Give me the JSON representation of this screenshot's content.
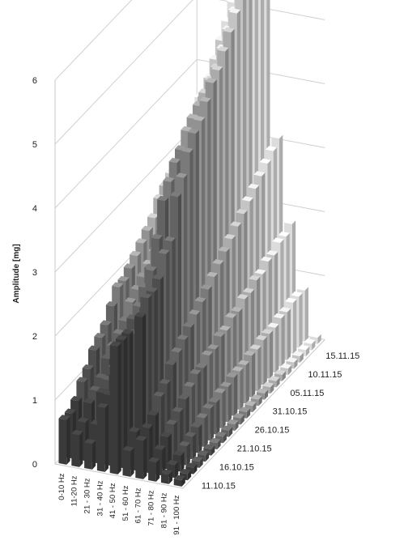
{
  "chart_data": {
    "type": "bar",
    "subtype": "3d-column",
    "ylabel": "Amplitude [mg]",
    "ylim": [
      0,
      6
    ],
    "yticks": [
      0,
      1,
      2,
      3,
      4,
      5,
      6
    ],
    "grid": true,
    "legend": "none",
    "categories": [
      "0-10 Hz",
      "11-20 Hz",
      "21 - 30 Hz",
      "31 - 40 Hz",
      "41 - 50 Hz",
      "51 - 60 Hz",
      "61 - 70 Hz",
      "71 - 80 Hz",
      "81 - 90 Hz",
      "91 - 100 Hz"
    ],
    "series_labels": [
      "11.10.15",
      "16.10.15",
      "21.10.15",
      "26.10.15",
      "31.10.15",
      "05.11.15",
      "10.11.15",
      "15.11.15"
    ],
    "series_colors": [
      "#3a3a3a",
      "#4e4e4e",
      "#636363",
      "#7a7a7a",
      "#929292",
      "#ababab",
      "#c4c4c4",
      "#dcdcdc"
    ],
    "rows_per_series": 3,
    "values": [
      [
        0.7,
        0.7,
        0.8,
        1.0,
        1.1,
        1.3,
        1.4,
        1.5,
        1.7,
        1.9,
        1.9,
        2.0,
        2.1,
        2.2,
        2.3,
        2.4,
        2.6,
        2.7,
        2.8,
        2.9,
        3.0,
        3.2,
        3.3,
        3.5
      ],
      [
        0.5,
        0.6,
        0.8,
        0.9,
        1.0,
        1.2,
        1.3,
        1.4,
        1.5,
        1.7,
        1.8,
        1.9,
        2.0,
        2.1,
        2.2,
        2.3,
        2.4,
        2.5,
        2.6,
        2.8,
        2.9,
        3.0,
        3.1,
        3.3
      ],
      [
        0.4,
        0.6,
        1.0,
        1.1,
        1.2,
        1.3,
        1.3,
        1.4,
        1.4,
        1.5,
        1.5,
        1.6,
        1.6,
        1.7,
        1.8,
        1.9,
        2.0,
        2.1,
        2.2,
        2.3,
        2.4,
        2.5,
        2.6,
        2.7
      ],
      [
        1.0,
        1.1,
        1.3,
        1.5,
        1.7,
        1.9,
        2.0,
        2.2,
        2.4,
        2.6,
        2.8,
        3.0,
        3.2,
        3.4,
        3.6,
        3.8,
        4.0,
        4.2,
        4.4,
        4.6,
        4.8,
        5.0,
        5.2,
        5.4
      ],
      [
        2.0,
        2.0,
        2.0,
        1.9,
        1.9,
        2.1,
        2.6,
        3.0,
        3.5,
        3.7,
        3.9,
        4.0,
        4.2,
        4.3,
        4.4,
        4.5,
        4.6,
        4.7,
        4.9,
        5.1,
        5.3,
        5.5,
        5.7,
        5.9
      ],
      [
        0.4,
        0.6,
        2.3,
        2.5,
        2.5,
        2.6,
        2.9,
        3.0,
        3.6,
        3.8,
        4.1,
        4.3,
        4.4,
        4.6,
        4.8,
        4.9,
        5.1,
        5.3,
        5.5,
        5.7,
        5.9,
        6.1,
        6.3,
        6.5
      ],
      [
        0.6,
        0.7,
        0.8,
        1.0,
        1.1,
        1.3,
        1.4,
        1.5,
        1.6,
        1.7,
        1.8,
        1.9,
        2.0,
        2.1,
        2.2,
        2.3,
        2.4,
        2.5,
        2.6,
        2.7,
        2.8,
        2.9,
        3.0,
        3.1
      ],
      [
        0.3,
        0.4,
        0.5,
        0.6,
        0.7,
        0.8,
        0.9,
        1.0,
        1.0,
        1.1,
        1.1,
        1.2,
        1.2,
        1.3,
        1.3,
        1.4,
        1.4,
        1.5,
        1.5,
        1.6,
        1.6,
        1.7,
        1.7,
        1.8
      ],
      [
        0.15,
        0.2,
        0.25,
        0.3,
        0.35,
        0.4,
        0.45,
        0.5,
        0.5,
        0.55,
        0.55,
        0.6,
        0.6,
        0.6,
        0.65,
        0.65,
        0.7,
        0.7,
        0.7,
        0.75,
        0.75,
        0.8,
        0.8,
        0.8
      ],
      [
        0.1,
        0.1,
        0.1,
        0.1,
        0.1,
        0.1,
        0.1,
        0.1,
        0.1,
        0.1,
        0.1,
        0.1,
        0.1,
        0.1,
        0.1,
        0.1,
        0.1,
        0.1,
        0.1,
        0.1,
        0.1,
        0.1,
        0.1,
        0.1
      ]
    ]
  }
}
